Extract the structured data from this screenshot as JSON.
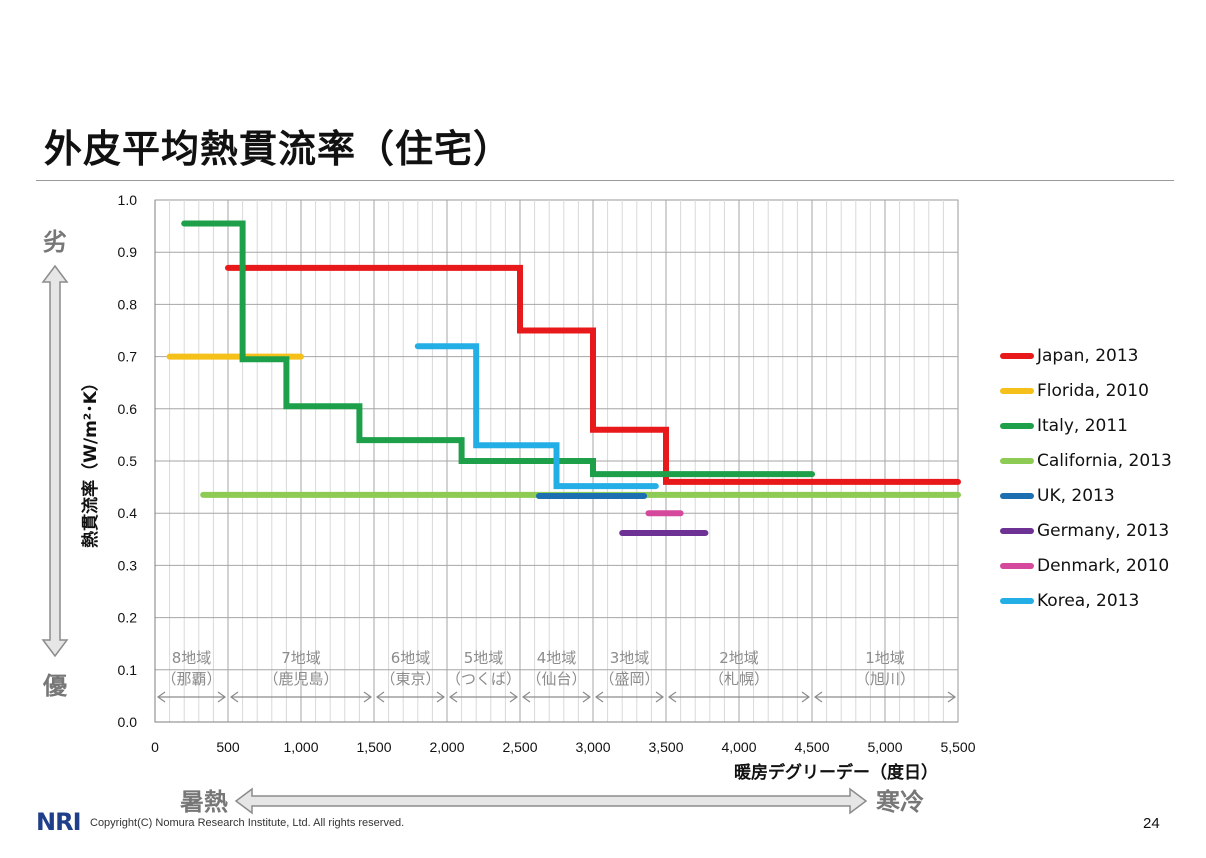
{
  "page": {
    "title": "外皮平均熱貫流率（住宅）",
    "copyright": "Copyright(C) Nomura Research Institute, Ltd. All rights reserved.",
    "logo_text": "NRI",
    "page_number": "24"
  },
  "chart_data": {
    "type": "line",
    "ylabel": "熱貫流率（W/m²･K）",
    "xlabel": "暖房デグリーデー（度日）",
    "xlim": [
      0,
      5500
    ],
    "ylim": [
      0,
      1.0
    ],
    "x_ticks": [
      0,
      500,
      1000,
      1500,
      2000,
      2500,
      3000,
      3500,
      4000,
      4500,
      5000,
      5500
    ],
    "x_tick_labels": [
      "0",
      "500",
      "1,000",
      "1,500",
      "2,000",
      "2,500",
      "3,000",
      "3,500",
      "4,000",
      "4,500",
      "5,000",
      "5,500"
    ],
    "y_ticks": [
      0,
      0.1,
      0.2,
      0.3,
      0.4,
      0.5,
      0.6,
      0.7,
      0.8,
      0.9,
      1.0
    ],
    "y_tick_labels": [
      "0.0",
      "0.1",
      "0.2",
      "0.3",
      "0.4",
      "0.5",
      "0.6",
      "0.7",
      "0.8",
      "0.9",
      "1.0"
    ],
    "grid": true,
    "legend_position": "right",
    "series": [
      {
        "name": "Japan, 2013",
        "color": "#e8191b",
        "points": [
          [
            500,
            0.87
          ],
          [
            2500,
            0.87
          ],
          [
            2500,
            0.75
          ],
          [
            3000,
            0.75
          ],
          [
            3000,
            0.56
          ],
          [
            3500,
            0.56
          ],
          [
            3500,
            0.46
          ],
          [
            5500,
            0.46
          ]
        ]
      },
      {
        "name": "Florida, 2010",
        "color": "#f6c01a",
        "points": [
          [
            100,
            0.7
          ],
          [
            1000,
            0.7
          ]
        ]
      },
      {
        "name": "Italy, 2011",
        "color": "#1ea04a",
        "points": [
          [
            200,
            0.955
          ],
          [
            600,
            0.955
          ],
          [
            600,
            0.695
          ],
          [
            900,
            0.695
          ],
          [
            900,
            0.605
          ],
          [
            1400,
            0.605
          ],
          [
            1400,
            0.54
          ],
          [
            2100,
            0.54
          ],
          [
            2100,
            0.5
          ],
          [
            3000,
            0.5
          ],
          [
            3000,
            0.475
          ],
          [
            4500,
            0.475
          ]
        ]
      },
      {
        "name": "California, 2013",
        "color": "#8ecb55",
        "points": [
          [
            330,
            0.435
          ],
          [
            5500,
            0.435
          ]
        ]
      },
      {
        "name": "UK, 2013",
        "color": "#1c6fb0",
        "points": [
          [
            2630,
            0.433
          ],
          [
            3350,
            0.433
          ]
        ]
      },
      {
        "name": "Germany, 2013",
        "color": "#6e3295",
        "points": [
          [
            3200,
            0.362
          ],
          [
            3770,
            0.362
          ]
        ]
      },
      {
        "name": "Denmark, 2010",
        "color": "#d4499c",
        "points": [
          [
            3380,
            0.4
          ],
          [
            3600,
            0.4
          ]
        ]
      },
      {
        "name": "Korea, 2013",
        "color": "#23aee5",
        "points": [
          [
            1800,
            0.72
          ],
          [
            2200,
            0.72
          ],
          [
            2200,
            0.53
          ],
          [
            2750,
            0.53
          ],
          [
            2750,
            0.452
          ],
          [
            3430,
            0.452
          ]
        ]
      }
    ],
    "zones": [
      {
        "name": "8地域",
        "city": "（那覇）",
        "from": 0,
        "to": 500
      },
      {
        "name": "7地域",
        "city": "（鹿児島）",
        "from": 500,
        "to": 1500
      },
      {
        "name": "6地域",
        "city": "（東京）",
        "from": 1500,
        "to": 2000
      },
      {
        "name": "5地域",
        "city": "（つくば）",
        "from": 2000,
        "to": 2500
      },
      {
        "name": "4地域",
        "city": "（仙台）",
        "from": 2500,
        "to": 3000
      },
      {
        "name": "3地域",
        "city": "（盛岡）",
        "from": 3000,
        "to": 3500
      },
      {
        "name": "2地域",
        "city": "（札幌）",
        "from": 3500,
        "to": 4500
      },
      {
        "name": "1地域",
        "city": "（旭川）",
        "from": 4500,
        "to": 5500
      }
    ],
    "annotations": {
      "y_top": "劣",
      "y_bottom": "優",
      "x_left": "暑熱",
      "x_right": "寒冷"
    }
  }
}
